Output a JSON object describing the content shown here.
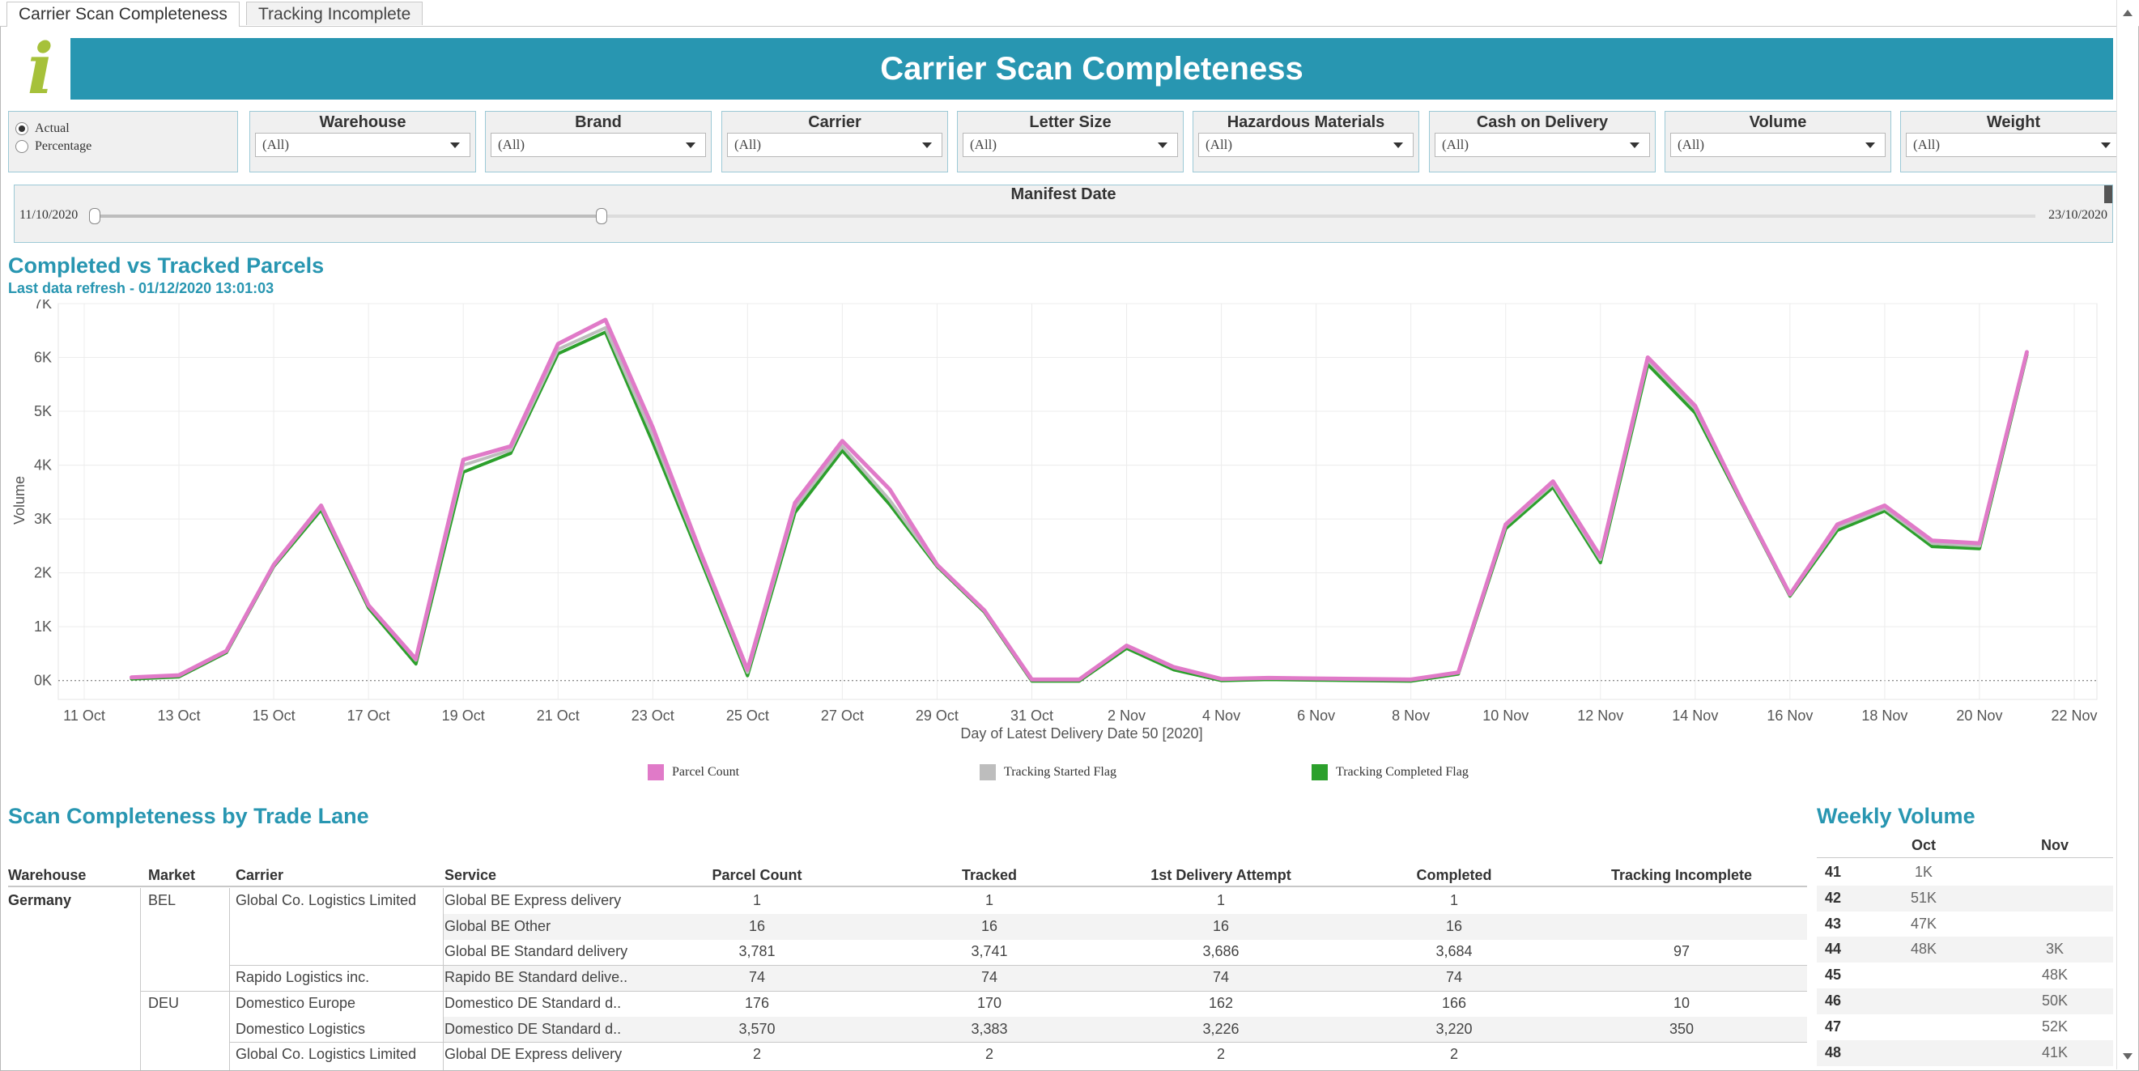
{
  "tabs": [
    {
      "label": "Carrier Scan Completeness",
      "active": true
    },
    {
      "label": "Tracking Incomplete",
      "active": false
    }
  ],
  "header": {
    "logo_icon": "info-icon",
    "title": "Carrier Scan Completeness"
  },
  "mode": {
    "options": [
      "Actual",
      "Percentage"
    ],
    "selected": "Actual"
  },
  "filters": [
    {
      "label": "Warehouse",
      "value": "(All)"
    },
    {
      "label": "Brand",
      "value": "(All)"
    },
    {
      "label": "Carrier",
      "value": "(All)"
    },
    {
      "label": "Letter Size",
      "value": "(All)"
    },
    {
      "label": "Hazardous Materials",
      "value": "(All)"
    },
    {
      "label": "Cash on Delivery",
      "value": "(All)"
    },
    {
      "label": "Volume",
      "value": "(All)"
    },
    {
      "label": "Weight",
      "value": "(All)"
    }
  ],
  "manifest": {
    "label": "Manifest Date",
    "start": "11/10/2020",
    "end": "23/10/2020"
  },
  "chart_section": {
    "title": "Completed vs Tracked Parcels",
    "subtitle": "Last data refresh - 01/12/2020 13:01:03"
  },
  "chart_data": {
    "type": "line",
    "xlabel": "Day of Latest Delivery Date 50 [2020]",
    "ylabel": "Volume",
    "ylim": [
      -350,
      7000
    ],
    "yticks": [
      "0K",
      "1K",
      "2K",
      "3K",
      "4K",
      "5K",
      "6K",
      "7K"
    ],
    "xtick_labels": [
      "11 Oct",
      "13 Oct",
      "15 Oct",
      "17 Oct",
      "19 Oct",
      "21 Oct",
      "23 Oct",
      "25 Oct",
      "27 Oct",
      "29 Oct",
      "31 Oct",
      "2 Nov",
      "4 Nov",
      "6 Nov",
      "8 Nov",
      "10 Nov",
      "12 Nov",
      "14 Nov",
      "16 Nov",
      "18 Nov",
      "20 Nov",
      "22 Nov"
    ],
    "x": [
      "12 Oct",
      "13 Oct",
      "14 Oct",
      "15 Oct",
      "16 Oct",
      "17 Oct",
      "18 Oct",
      "19 Oct",
      "20 Oct",
      "21 Oct",
      "22 Oct",
      "23 Oct",
      "24 Oct",
      "25 Oct",
      "26 Oct",
      "27 Oct",
      "28 Oct",
      "29 Oct",
      "30 Oct",
      "31 Oct",
      "1 Nov",
      "2 Nov",
      "3 Nov",
      "4 Nov",
      "5 Nov",
      "6 Nov",
      "7 Nov",
      "8 Nov",
      "9 Nov",
      "10 Nov",
      "11 Nov",
      "12 Nov",
      "13 Nov",
      "14 Nov",
      "15 Nov",
      "16 Nov",
      "17 Nov",
      "18 Nov",
      "19 Nov",
      "20 Nov",
      "21 Nov"
    ],
    "series": [
      {
        "name": "Parcel Count",
        "color": "#e07ac8",
        "values": [
          60,
          100,
          550,
          2150,
          3250,
          1400,
          400,
          4100,
          4350,
          6250,
          6700,
          4700,
          2400,
          200,
          3300,
          4450,
          3550,
          2150,
          1300,
          20,
          20,
          650,
          250,
          30,
          50,
          40,
          30,
          20,
          150,
          2900,
          3700,
          2300,
          6000,
          5100,
          3300,
          1600,
          2900,
          3250,
          2600,
          2550,
          6100
        ]
      },
      {
        "name": "Tracking Started Flag",
        "color": "#bdbdbd",
        "values": [
          60,
          100,
          550,
          2150,
          3220,
          1400,
          380,
          4000,
          4280,
          6150,
          6550,
          4550,
          2350,
          150,
          3220,
          4350,
          3350,
          2150,
          1300,
          20,
          20,
          640,
          240,
          30,
          50,
          40,
          30,
          20,
          150,
          2880,
          3650,
          2250,
          5950,
          5050,
          3300,
          1600,
          2850,
          3200,
          2550,
          2500,
          6100
        ]
      },
      {
        "name": "Tracking Completed Flag",
        "color": "#2ca02c",
        "values": [
          60,
          100,
          550,
          2150,
          3200,
          1380,
          340,
          3900,
          4250,
          6100,
          6500,
          4450,
          2300,
          120,
          3150,
          4300,
          3300,
          2150,
          1300,
          20,
          20,
          630,
          230,
          30,
          50,
          40,
          30,
          20,
          150,
          2850,
          3620,
          2220,
          5900,
          5000,
          3300,
          1600,
          2820,
          3180,
          2520,
          2480,
          6080
        ]
      }
    ],
    "legend": "bottom"
  },
  "trade_lane": {
    "title": "Scan Completeness by Trade Lane",
    "columns": [
      "Warehouse",
      "Market",
      "Carrier",
      "Service",
      "Parcel Count",
      "Tracked",
      "1st Delivery Attempt",
      "Completed",
      "Tracking Incomplete"
    ],
    "rows": [
      {
        "warehouse": "Germany",
        "market": "BEL",
        "carrier": "Global Co. Logistics Limited",
        "service": "Global BE Express delivery",
        "parcel": "1",
        "tracked": "1",
        "first": "1",
        "completed": "1",
        "incomplete": ""
      },
      {
        "warehouse": "",
        "market": "",
        "carrier": "",
        "service": "Global BE Other",
        "parcel": "16",
        "tracked": "16",
        "first": "16",
        "completed": "16",
        "incomplete": ""
      },
      {
        "warehouse": "",
        "market": "",
        "carrier": "",
        "service": "Global BE Standard delivery",
        "parcel": "3,781",
        "tracked": "3,741",
        "first": "3,686",
        "completed": "3,684",
        "incomplete": "97"
      },
      {
        "warehouse": "",
        "market": "",
        "carrier": "Rapido Logistics inc.",
        "service": "Rapido BE Standard delive..",
        "parcel": "74",
        "tracked": "74",
        "first": "74",
        "completed": "74",
        "incomplete": ""
      },
      {
        "warehouse": "",
        "market": "DEU",
        "carrier": "Domestico Europe",
        "service": "Domestico DE Standard d..",
        "parcel": "176",
        "tracked": "170",
        "first": "162",
        "completed": "166",
        "incomplete": "10"
      },
      {
        "warehouse": "",
        "market": "",
        "carrier": "Domestico Logistics",
        "service": "Domestico DE Standard d..",
        "parcel": "3,570",
        "tracked": "3,383",
        "first": "3,226",
        "completed": "3,220",
        "incomplete": "350"
      },
      {
        "warehouse": "",
        "market": "",
        "carrier": "Global Co. Logistics Limited",
        "service": "Global DE Express delivery",
        "parcel": "2",
        "tracked": "2",
        "first": "2",
        "completed": "2",
        "incomplete": ""
      }
    ]
  },
  "weekly": {
    "title": "Weekly Volume",
    "columns": [
      "Oct",
      "Nov"
    ],
    "rows": [
      {
        "week": "41",
        "oct": "1K",
        "nov": ""
      },
      {
        "week": "42",
        "oct": "51K",
        "nov": ""
      },
      {
        "week": "43",
        "oct": "47K",
        "nov": ""
      },
      {
        "week": "44",
        "oct": "48K",
        "nov": "3K"
      },
      {
        "week": "45",
        "oct": "",
        "nov": "48K"
      },
      {
        "week": "46",
        "oct": "",
        "nov": "50K"
      },
      {
        "week": "47",
        "oct": "",
        "nov": "52K"
      },
      {
        "week": "48",
        "oct": "",
        "nov": "41K"
      }
    ]
  }
}
